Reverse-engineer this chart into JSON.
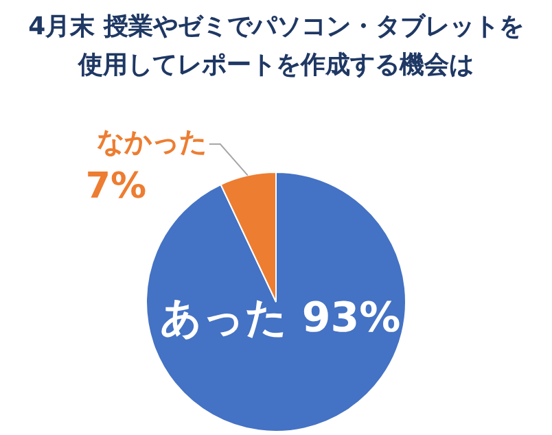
{
  "chart_data": {
    "type": "pie",
    "title": "4月末 授業やゼミでパソコン・タブレットを使用してレポートを作成する機会は",
    "categories": [
      "あった",
      "なかった"
    ],
    "values": [
      93,
      7
    ],
    "colors": [
      "#4472c4",
      "#ed7d31"
    ],
    "value_labels": [
      "93%",
      "7%"
    ],
    "legend": false
  }
}
